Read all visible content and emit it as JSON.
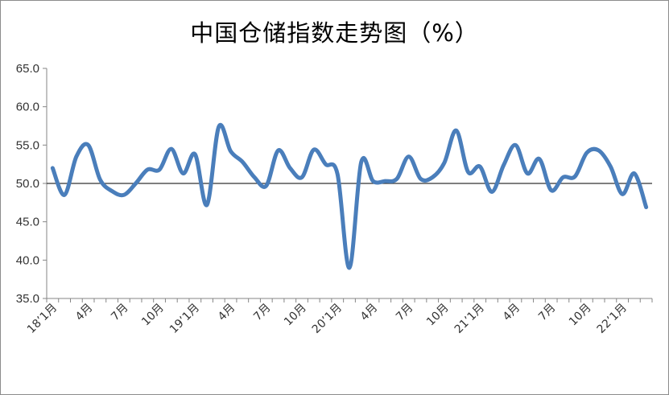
{
  "chart_data": {
    "type": "line",
    "title": "中国仓储指数走势图（%）",
    "xlabel": "",
    "ylabel": "",
    "ylim": [
      35,
      65
    ],
    "y_ticks": [
      "35.0",
      "40.0",
      "45.0",
      "50.0",
      "55.0",
      "60.0",
      "65.0"
    ],
    "reference_line": 50,
    "x_tick_labels": [
      {
        "i": 0,
        "label": "18’1月"
      },
      {
        "i": 3,
        "label": "4月"
      },
      {
        "i": 6,
        "label": "7月"
      },
      {
        "i": 9,
        "label": "10月"
      },
      {
        "i": 12,
        "label": "19’1月"
      },
      {
        "i": 15,
        "label": "4月"
      },
      {
        "i": 18,
        "label": "7月"
      },
      {
        "i": 21,
        "label": "10月"
      },
      {
        "i": 24,
        "label": "20’1月"
      },
      {
        "i": 27,
        "label": "4月"
      },
      {
        "i": 30,
        "label": "7月"
      },
      {
        "i": 33,
        "label": "10月"
      },
      {
        "i": 36,
        "label": "21’1月"
      },
      {
        "i": 39,
        "label": "4月"
      },
      {
        "i": 42,
        "label": "7月"
      },
      {
        "i": 45,
        "label": "10月"
      },
      {
        "i": 48,
        "label": "22’1月"
      }
    ],
    "series": [
      {
        "name": "",
        "color": "#4a7ebb",
        "values": [
          52.0,
          48.5,
          53.5,
          55.0,
          50.5,
          49.0,
          48.5,
          50.0,
          51.8,
          51.8,
          54.5,
          51.3,
          53.8,
          47.2,
          57.4,
          54.2,
          52.8,
          50.8,
          49.7,
          54.3,
          52.0,
          50.8,
          54.4,
          52.5,
          51.2,
          39.0,
          52.8,
          50.3,
          50.3,
          50.6,
          53.5,
          50.6,
          50.8,
          52.7,
          56.9,
          51.5,
          52.2,
          48.9,
          52.4,
          55.0,
          51.3,
          53.2,
          49.1,
          50.8,
          50.9,
          54.0,
          54.3,
          52.2,
          48.6,
          51.3,
          46.9
        ]
      }
    ]
  }
}
